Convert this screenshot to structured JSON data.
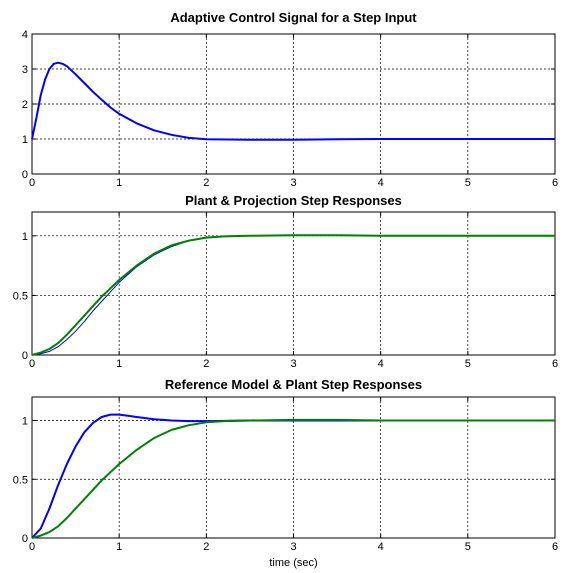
{
  "chart_data": [
    {
      "type": "line",
      "title": "Adaptive Control Signal for a Step Input",
      "xlabel": "",
      "ylabel": "",
      "xlim": [
        0,
        6
      ],
      "ylim": [
        0,
        4
      ],
      "xticks": [
        "0",
        "1",
        "2",
        "3",
        "4",
        "5",
        "6"
      ],
      "yticks": [
        "0",
        "1",
        "2",
        "3",
        "4"
      ],
      "grid": true,
      "series": [
        {
          "color": "#0000ff",
          "width": 2,
          "x": [
            0,
            0.05,
            0.1,
            0.15,
            0.2,
            0.25,
            0.3,
            0.35,
            0.4,
            0.5,
            0.6,
            0.7,
            0.8,
            0.9,
            1.0,
            1.2,
            1.4,
            1.6,
            1.8,
            2.0,
            2.5,
            3.0,
            3.5,
            4.0,
            5.0,
            6.0
          ],
          "y": [
            1.0,
            1.6,
            2.25,
            2.7,
            3.0,
            3.15,
            3.18,
            3.15,
            3.08,
            2.85,
            2.6,
            2.35,
            2.12,
            1.9,
            1.72,
            1.45,
            1.25,
            1.12,
            1.03,
            0.99,
            0.98,
            0.98,
            0.99,
            1.0,
            1.0,
            1.0
          ]
        }
      ]
    },
    {
      "type": "line",
      "title": "Plant & Projection Step Responses",
      "xlabel": "",
      "ylabel": "",
      "xlim": [
        0,
        6
      ],
      "ylim": [
        0,
        1.2
      ],
      "xticks": [
        "0",
        "1",
        "2",
        "3",
        "4",
        "5",
        "6"
      ],
      "yticks": [
        "0",
        "0.5",
        "1"
      ],
      "grid": true,
      "series": [
        {
          "color": "#0000ff",
          "width": 1,
          "x": [
            0,
            0.1,
            0.2,
            0.3,
            0.4,
            0.5,
            0.6,
            0.7,
            0.8,
            0.9,
            1.0,
            1.2,
            1.4,
            1.6,
            1.8,
            2.0,
            2.2,
            2.5,
            3.0,
            3.5,
            4.0,
            5.0,
            6.0
          ],
          "y": [
            0,
            0.01,
            0.03,
            0.07,
            0.13,
            0.2,
            0.28,
            0.37,
            0.45,
            0.53,
            0.61,
            0.74,
            0.84,
            0.91,
            0.96,
            0.985,
            0.995,
            1.0,
            1.005,
            1.005,
            1.0,
            1.0,
            1.0
          ]
        },
        {
          "color": "#008000",
          "width": 2,
          "x": [
            0,
            0.1,
            0.2,
            0.3,
            0.4,
            0.5,
            0.6,
            0.7,
            0.8,
            0.9,
            1.0,
            1.2,
            1.4,
            1.6,
            1.8,
            2.0,
            2.2,
            2.5,
            3.0,
            3.5,
            4.0,
            5.0,
            6.0
          ],
          "y": [
            0,
            0.02,
            0.05,
            0.1,
            0.17,
            0.25,
            0.33,
            0.41,
            0.49,
            0.56,
            0.63,
            0.75,
            0.85,
            0.92,
            0.96,
            0.985,
            0.995,
            1.0,
            1.005,
            1.005,
            1.0,
            1.0,
            1.0
          ]
        }
      ]
    },
    {
      "type": "line",
      "title": "Reference Model & Plant Step Responses",
      "xlabel": "time (sec)",
      "ylabel": "",
      "xlim": [
        0,
        6
      ],
      "ylim": [
        0,
        1.2
      ],
      "xticks": [
        "0",
        "1",
        "2",
        "3",
        "4",
        "5",
        "6"
      ],
      "yticks": [
        "0",
        "0.5",
        "1"
      ],
      "grid": true,
      "series": [
        {
          "color": "#0000ff",
          "width": 2,
          "x": [
            0,
            0.1,
            0.2,
            0.3,
            0.4,
            0.5,
            0.6,
            0.7,
            0.8,
            0.9,
            1.0,
            1.1,
            1.2,
            1.4,
            1.6,
            1.8,
            2.0,
            2.5,
            3.0,
            4.0,
            5.0,
            6.0
          ],
          "y": [
            0,
            0.08,
            0.25,
            0.45,
            0.63,
            0.78,
            0.9,
            0.98,
            1.03,
            1.05,
            1.05,
            1.04,
            1.03,
            1.01,
            1.0,
            0.995,
            0.995,
            1.0,
            1.0,
            1.0,
            1.0,
            1.0
          ]
        },
        {
          "color": "#008000",
          "width": 2,
          "x": [
            0,
            0.1,
            0.2,
            0.3,
            0.4,
            0.5,
            0.6,
            0.7,
            0.8,
            0.9,
            1.0,
            1.2,
            1.4,
            1.6,
            1.8,
            2.0,
            2.2,
            2.5,
            3.0,
            3.5,
            4.0,
            5.0,
            6.0
          ],
          "y": [
            0,
            0.02,
            0.05,
            0.1,
            0.17,
            0.25,
            0.33,
            0.41,
            0.49,
            0.56,
            0.63,
            0.75,
            0.85,
            0.92,
            0.96,
            0.985,
            0.995,
            1.0,
            1.005,
            1.005,
            1.0,
            1.0,
            1.0
          ]
        }
      ]
    }
  ]
}
